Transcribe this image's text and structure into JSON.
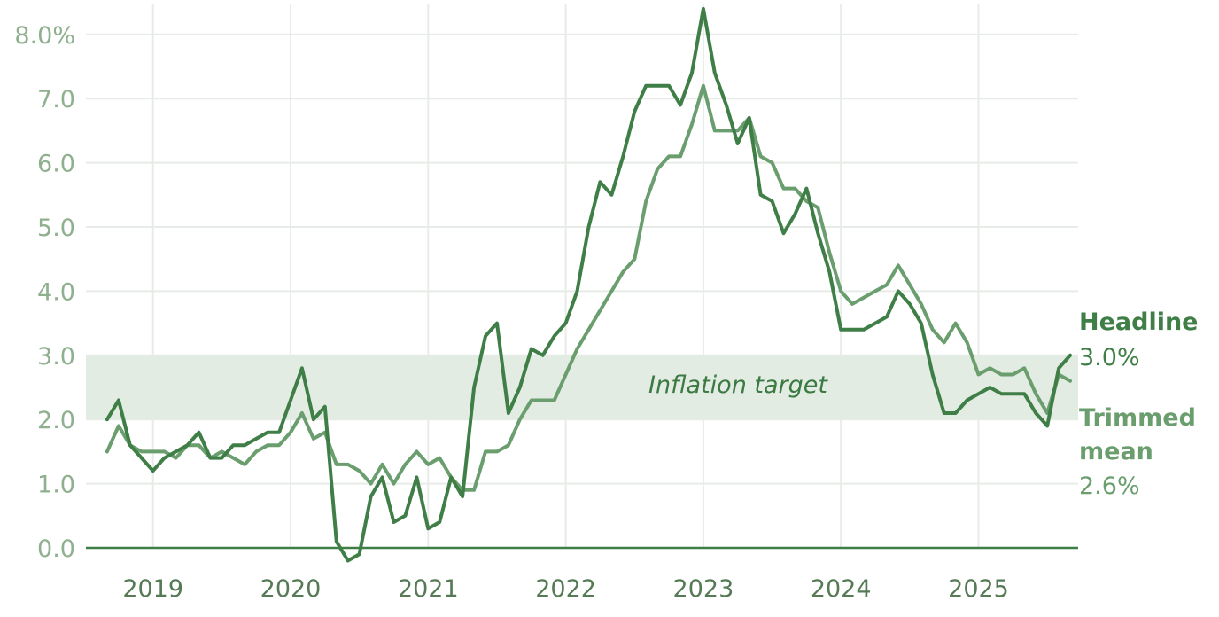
{
  "chart_data": {
    "type": "line",
    "title": "",
    "xlabel": "",
    "ylabel": "",
    "x_ticks": [
      "2019",
      "2020",
      "2021",
      "2022",
      "2023",
      "2024",
      "2025"
    ],
    "y_ticks": [
      "8.0%",
      "7.0",
      "6.0",
      "5.0",
      "4.0",
      "3.0",
      "2.0",
      "1.0",
      "0.0"
    ],
    "ylim": [
      -0.2,
      8.4
    ],
    "xlim": [
      "2018-06",
      "2025-10"
    ],
    "grid": true,
    "target_band": {
      "label": "Inflation target",
      "low": 2.0,
      "high": 3.0
    },
    "series": [
      {
        "name": "Headline",
        "end_label": "3.0%",
        "color": "#3f7f47",
        "points": [
          [
            "2018-09",
            2.0
          ],
          [
            "2018-10",
            2.3
          ],
          [
            "2018-11",
            1.6
          ],
          [
            "2018-12",
            1.4
          ],
          [
            "2019-01",
            1.2
          ],
          [
            "2019-02",
            1.4
          ],
          [
            "2019-03",
            1.5
          ],
          [
            "2019-04",
            1.6
          ],
          [
            "2019-05",
            1.8
          ],
          [
            "2019-06",
            1.4
          ],
          [
            "2019-07",
            1.4
          ],
          [
            "2019-08",
            1.6
          ],
          [
            "2019-09",
            1.6
          ],
          [
            "2019-10",
            1.7
          ],
          [
            "2019-11",
            1.8
          ],
          [
            "2019-12",
            1.8
          ],
          [
            "2020-01",
            2.3
          ],
          [
            "2020-02",
            2.8
          ],
          [
            "2020-03",
            2.0
          ],
          [
            "2020-04",
            2.2
          ],
          [
            "2020-05",
            0.1
          ],
          [
            "2020-06",
            -0.2
          ],
          [
            "2020-07",
            -0.1
          ],
          [
            "2020-08",
            0.8
          ],
          [
            "2020-09",
            1.1
          ],
          [
            "2020-10",
            0.4
          ],
          [
            "2020-11",
            0.5
          ],
          [
            "2020-12",
            1.1
          ],
          [
            "2021-01",
            0.3
          ],
          [
            "2021-02",
            0.4
          ],
          [
            "2021-03",
            1.1
          ],
          [
            "2021-04",
            0.8
          ],
          [
            "2021-05",
            2.5
          ],
          [
            "2021-06",
            3.3
          ],
          [
            "2021-07",
            3.5
          ],
          [
            "2021-08",
            2.1
          ],
          [
            "2021-09",
            2.5
          ],
          [
            "2021-10",
            3.1
          ],
          [
            "2021-11",
            3.0
          ],
          [
            "2021-12",
            3.3
          ],
          [
            "2022-01",
            3.5
          ],
          [
            "2022-02",
            4.0
          ],
          [
            "2022-03",
            5.0
          ],
          [
            "2022-04",
            5.7
          ],
          [
            "2022-05",
            5.5
          ],
          [
            "2022-06",
            6.1
          ],
          [
            "2022-07",
            6.8
          ],
          [
            "2022-08",
            7.2
          ],
          [
            "2022-09",
            7.2
          ],
          [
            "2022-10",
            7.2
          ],
          [
            "2022-11",
            6.9
          ],
          [
            "2022-12",
            7.4
          ],
          [
            "2023-01",
            8.4
          ],
          [
            "2023-02",
            7.4
          ],
          [
            "2023-03",
            6.9
          ],
          [
            "2023-04",
            6.3
          ],
          [
            "2023-05",
            6.7
          ],
          [
            "2023-06",
            5.5
          ],
          [
            "2023-07",
            5.4
          ],
          [
            "2023-08",
            4.9
          ],
          [
            "2023-09",
            5.2
          ],
          [
            "2023-10",
            5.6
          ],
          [
            "2023-11",
            4.9
          ],
          [
            "2023-12",
            4.3
          ],
          [
            "2024-01",
            3.4
          ],
          [
            "2024-02",
            3.4
          ],
          [
            "2024-03",
            3.4
          ],
          [
            "2024-04",
            3.5
          ],
          [
            "2024-05",
            3.6
          ],
          [
            "2024-06",
            4.0
          ],
          [
            "2024-07",
            3.8
          ],
          [
            "2024-08",
            3.5
          ],
          [
            "2024-09",
            2.7
          ],
          [
            "2024-10",
            2.1
          ],
          [
            "2024-11",
            2.1
          ],
          [
            "2024-12",
            2.3
          ],
          [
            "2025-01",
            2.4
          ],
          [
            "2025-02",
            2.5
          ],
          [
            "2025-03",
            2.4
          ],
          [
            "2025-04",
            2.4
          ],
          [
            "2025-05",
            2.4
          ],
          [
            "2025-06",
            2.1
          ],
          [
            "2025-07",
            1.9
          ],
          [
            "2025-08",
            2.8
          ],
          [
            "2025-09",
            3.0
          ]
        ]
      },
      {
        "name": "Trimmed mean",
        "name_lines": [
          "Trimmed",
          "mean"
        ],
        "end_label": "2.6%",
        "color": "#6a9e6e",
        "points": [
          [
            "2018-09",
            1.5
          ],
          [
            "2018-10",
            1.9
          ],
          [
            "2018-11",
            1.6
          ],
          [
            "2018-12",
            1.5
          ],
          [
            "2019-01",
            1.5
          ],
          [
            "2019-02",
            1.5
          ],
          [
            "2019-03",
            1.4
          ],
          [
            "2019-04",
            1.6
          ],
          [
            "2019-05",
            1.6
          ],
          [
            "2019-06",
            1.4
          ],
          [
            "2019-07",
            1.5
          ],
          [
            "2019-08",
            1.4
          ],
          [
            "2019-09",
            1.3
          ],
          [
            "2019-10",
            1.5
          ],
          [
            "2019-11",
            1.6
          ],
          [
            "2019-12",
            1.6
          ],
          [
            "2020-01",
            1.8
          ],
          [
            "2020-02",
            2.1
          ],
          [
            "2020-03",
            1.7
          ],
          [
            "2020-04",
            1.8
          ],
          [
            "2020-05",
            1.3
          ],
          [
            "2020-06",
            1.3
          ],
          [
            "2020-07",
            1.2
          ],
          [
            "2020-08",
            1.0
          ],
          [
            "2020-09",
            1.3
          ],
          [
            "2020-10",
            1.0
          ],
          [
            "2020-11",
            1.3
          ],
          [
            "2020-12",
            1.5
          ],
          [
            "2021-01",
            1.3
          ],
          [
            "2021-02",
            1.4
          ],
          [
            "2021-03",
            1.1
          ],
          [
            "2021-04",
            0.9
          ],
          [
            "2021-05",
            0.9
          ],
          [
            "2021-06",
            1.5
          ],
          [
            "2021-07",
            1.5
          ],
          [
            "2021-08",
            1.6
          ],
          [
            "2021-09",
            2.0
          ],
          [
            "2021-10",
            2.3
          ],
          [
            "2021-11",
            2.3
          ],
          [
            "2021-12",
            2.3
          ],
          [
            "2022-01",
            2.7
          ],
          [
            "2022-02",
            3.1
          ],
          [
            "2022-03",
            3.4
          ],
          [
            "2022-04",
            3.7
          ],
          [
            "2022-05",
            4.0
          ],
          [
            "2022-06",
            4.3
          ],
          [
            "2022-07",
            4.5
          ],
          [
            "2022-08",
            5.4
          ],
          [
            "2022-09",
            5.9
          ],
          [
            "2022-10",
            6.1
          ],
          [
            "2022-11",
            6.1
          ],
          [
            "2022-12",
            6.6
          ],
          [
            "2023-01",
            7.2
          ],
          [
            "2023-02",
            6.5
          ],
          [
            "2023-03",
            6.5
          ],
          [
            "2023-04",
            6.5
          ],
          [
            "2023-05",
            6.7
          ],
          [
            "2023-06",
            6.1
          ],
          [
            "2023-07",
            6.0
          ],
          [
            "2023-08",
            5.6
          ],
          [
            "2023-09",
            5.6
          ],
          [
            "2023-10",
            5.4
          ],
          [
            "2023-11",
            5.3
          ],
          [
            "2023-12",
            4.6
          ],
          [
            "2024-01",
            4.0
          ],
          [
            "2024-02",
            3.8
          ],
          [
            "2024-03",
            3.9
          ],
          [
            "2024-04",
            4.0
          ],
          [
            "2024-05",
            4.1
          ],
          [
            "2024-06",
            4.4
          ],
          [
            "2024-07",
            4.1
          ],
          [
            "2024-08",
            3.8
          ],
          [
            "2024-09",
            3.4
          ],
          [
            "2024-10",
            3.2
          ],
          [
            "2024-11",
            3.5
          ],
          [
            "2024-12",
            3.2
          ],
          [
            "2025-01",
            2.7
          ],
          [
            "2025-02",
            2.8
          ],
          [
            "2025-03",
            2.7
          ],
          [
            "2025-04",
            2.7
          ],
          [
            "2025-05",
            2.8
          ],
          [
            "2025-06",
            2.4
          ],
          [
            "2025-07",
            2.1
          ],
          [
            "2025-08",
            2.7
          ],
          [
            "2025-09",
            2.6
          ]
        ]
      }
    ]
  }
}
